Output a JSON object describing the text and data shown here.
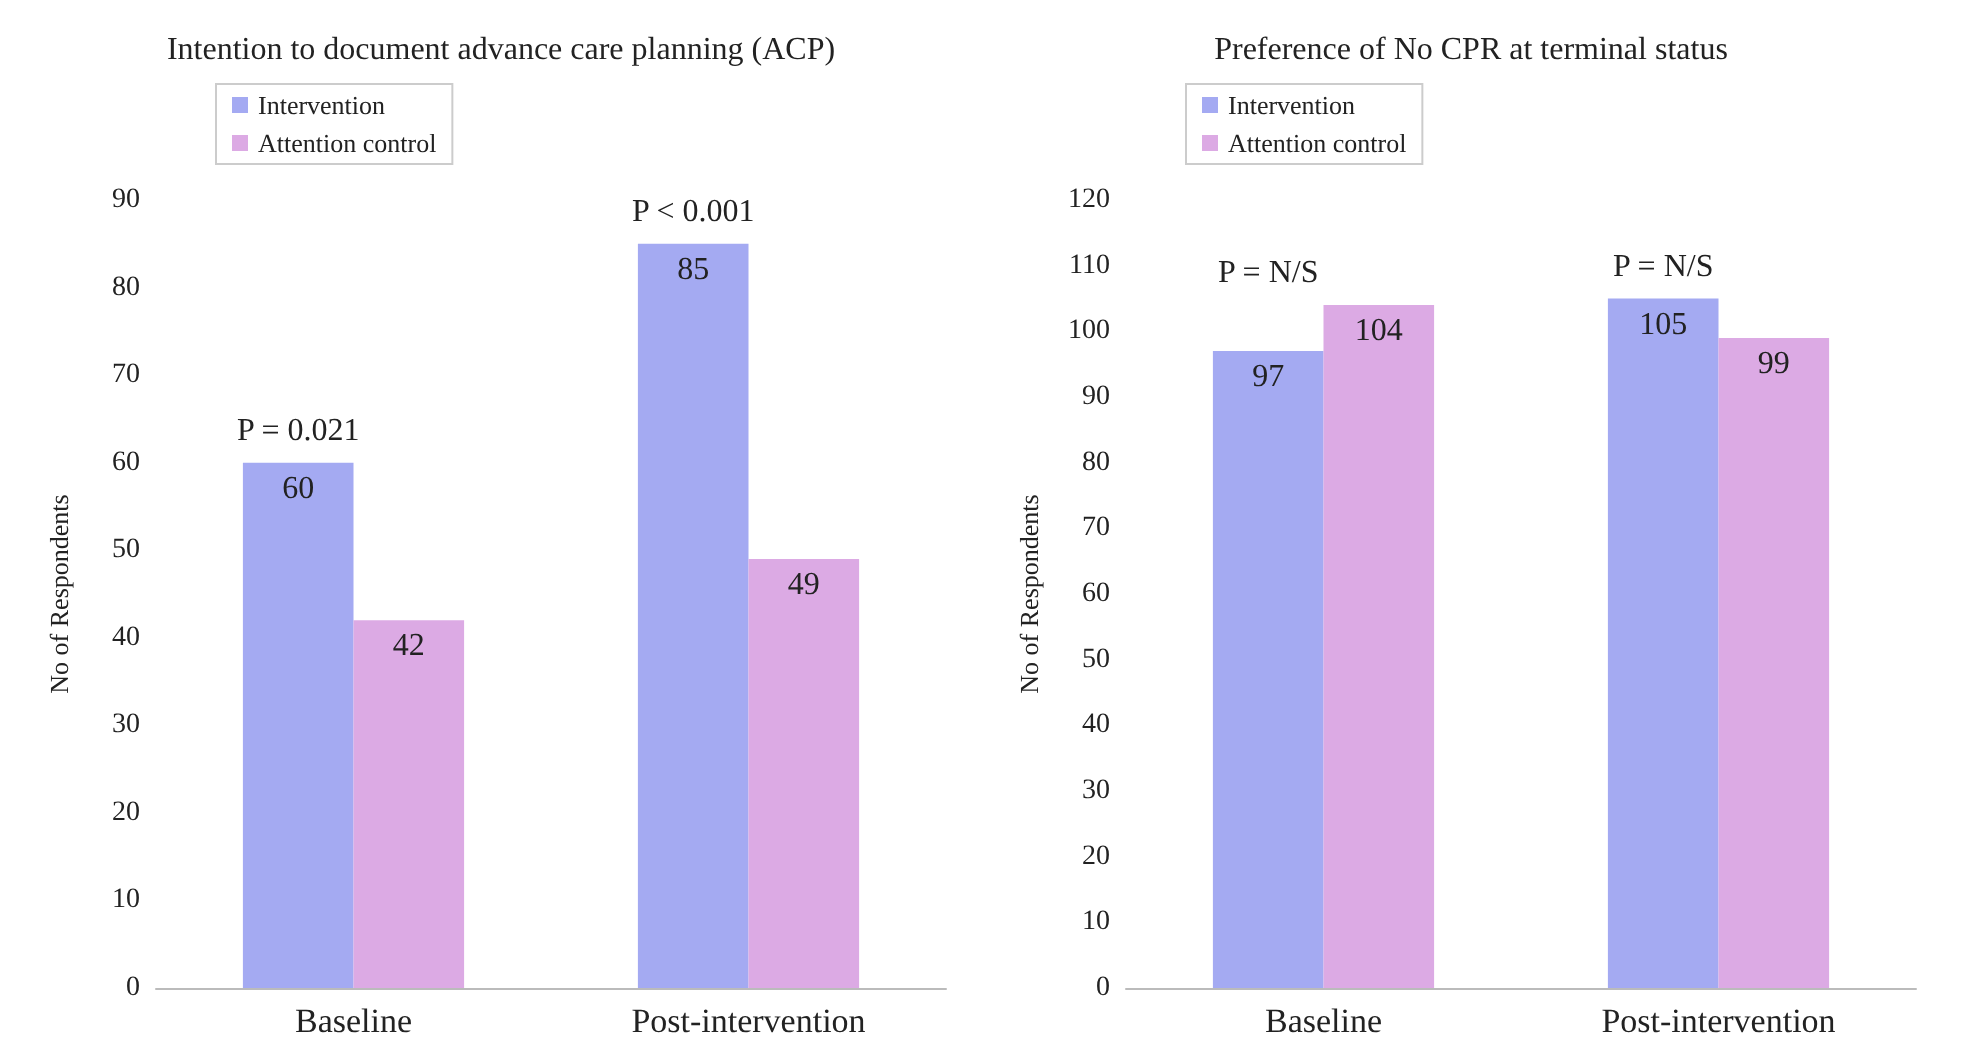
{
  "chart_data": [
    {
      "type": "bar",
      "title": "Intention to document advance care planning (ACP)",
      "ylabel": "No of Respondents",
      "categories": [
        "Baseline",
        "Post-intervention"
      ],
      "series": [
        {
          "name": "Intervention",
          "color": "#a4aaf2",
          "values": [
            60,
            85
          ]
        },
        {
          "name": "Attention control",
          "color": "#dcaae4",
          "values": [
            42,
            49
          ]
        }
      ],
      "ylim": [
        0,
        90
      ],
      "yticks": [
        0,
        10,
        20,
        30,
        40,
        50,
        60,
        70,
        80,
        90
      ],
      "grid": false,
      "legend": "top left",
      "data_labels": true,
      "annotations": [
        "P = 0.021",
        "P < 0.001"
      ]
    },
    {
      "type": "bar",
      "title": "Preference of No CPR at terminal status",
      "ylabel": "No of Respondents",
      "categories": [
        "Baseline",
        "Post-intervention"
      ],
      "series": [
        {
          "name": "Intervention",
          "color": "#a4aaf2",
          "values": [
            97,
            105
          ]
        },
        {
          "name": "Attention control",
          "color": "#dcaae4",
          "values": [
            104,
            99
          ]
        }
      ],
      "ylim": [
        0,
        120
      ],
      "yticks": [
        0,
        10,
        20,
        30,
        40,
        50,
        60,
        70,
        80,
        90,
        100,
        110,
        120
      ],
      "grid": false,
      "legend": "top left",
      "data_labels": true,
      "annotations": [
        "P = N/S",
        "P = N/S"
      ]
    }
  ]
}
